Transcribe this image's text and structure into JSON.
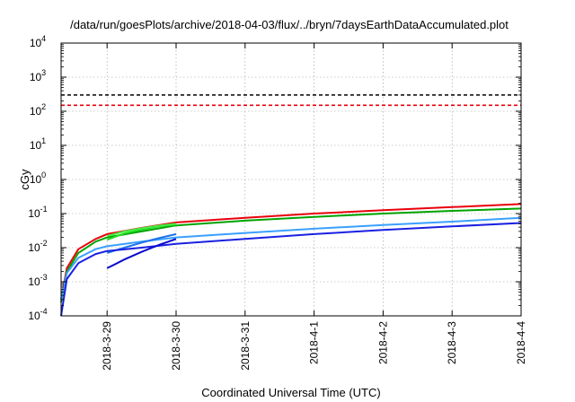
{
  "chart_data": {
    "type": "line",
    "title": "/data/run/goesPlots/archive/2018-04-03/flux/../bryn/7daysEarthDataAccumulated.plot",
    "xlabel": "Coordinated Universal Time (UTC)",
    "ylabel": "cGy",
    "y_scale": "log",
    "ylim": [
      0.0001,
      10000
    ],
    "y_ticks": [
      {
        "value": 0.0001,
        "base": "10",
        "exp": "-4"
      },
      {
        "value": 0.001,
        "base": "10",
        "exp": "-3"
      },
      {
        "value": 0.01,
        "base": "10",
        "exp": "-2"
      },
      {
        "value": 0.1,
        "base": "10",
        "exp": "-1"
      },
      {
        "value": 1,
        "base": "10",
        "exp": "0"
      },
      {
        "value": 10,
        "base": "10",
        "exp": "1"
      },
      {
        "value": 100,
        "base": "10",
        "exp": "2"
      },
      {
        "value": 1000,
        "base": "10",
        "exp": "3"
      },
      {
        "value": 10000,
        "base": "10",
        "exp": "4"
      }
    ],
    "xlim": [
      "2018-03-28 08:00",
      "2018-04-04 00:00"
    ],
    "x_ticks": [
      "2018-3-29",
      "2018-3-30",
      "2018-3-31",
      "2018-4-1",
      "2018-4-2",
      "2018-4-3",
      "2018-4-4"
    ],
    "grid": true,
    "reference_lines": [
      {
        "y": 300,
        "color": "#000000",
        "style": "dashed"
      },
      {
        "y": 150,
        "color": "#e8000b",
        "style": "dashed"
      }
    ],
    "series": [
      {
        "color": "#e8000b",
        "points": [
          [
            "2018-03-28 08:00",
            0.0003
          ],
          [
            "2018-03-28 10:00",
            0.0025
          ],
          [
            "2018-03-28 14:00",
            0.009
          ],
          [
            "2018-03-28 20:00",
            0.018
          ],
          [
            "2018-03-29 00:00",
            0.025
          ],
          [
            "2018-03-29 12:00",
            0.038
          ],
          [
            "2018-03-30 00:00",
            0.055
          ],
          [
            "2018-03-31 00:00",
            0.075
          ],
          [
            "2018-04-01 00:00",
            0.1
          ],
          [
            "2018-04-02 00:00",
            0.125
          ],
          [
            "2018-04-03 00:00",
            0.155
          ],
          [
            "2018-04-04 00:00",
            0.19
          ]
        ]
      },
      {
        "color": "#00a300",
        "points": [
          [
            "2018-03-28 08:00",
            0.00025
          ],
          [
            "2018-03-28 10:00",
            0.002
          ],
          [
            "2018-03-28 14:00",
            0.007
          ],
          [
            "2018-03-28 20:00",
            0.015
          ],
          [
            "2018-03-29 00:00",
            0.02
          ],
          [
            "2018-03-29 12:00",
            0.03
          ],
          [
            "2018-03-30 00:00",
            0.045
          ],
          [
            "2018-03-31 00:00",
            0.062
          ],
          [
            "2018-04-01 00:00",
            0.08
          ],
          [
            "2018-04-02 00:00",
            0.1
          ],
          [
            "2018-04-03 00:00",
            0.12
          ],
          [
            "2018-04-04 00:00",
            0.14
          ]
        ]
      },
      {
        "color": "#22dd22",
        "points": [
          [
            "2018-03-29 00:00",
            0.017
          ],
          [
            "2018-03-29 06:00",
            0.026
          ],
          [
            "2018-03-29 12:00",
            0.034
          ],
          [
            "2018-03-29 18:00",
            0.042
          ],
          [
            "2018-03-30 00:00",
            0.048
          ]
        ]
      },
      {
        "color": "#44ee44",
        "points": [
          [
            "2018-03-29 00:00",
            0.022
          ],
          [
            "2018-03-29 06:00",
            0.03
          ],
          [
            "2018-03-29 12:00",
            0.037
          ],
          [
            "2018-03-29 18:00",
            0.044
          ],
          [
            "2018-03-30 00:00",
            0.05
          ]
        ]
      },
      {
        "color": "#3aa0ff",
        "points": [
          [
            "2018-03-28 08:00",
            0.0003
          ],
          [
            "2018-03-28 10:00",
            0.0018
          ],
          [
            "2018-03-28 14:00",
            0.005
          ],
          [
            "2018-03-28 20:00",
            0.009
          ],
          [
            "2018-03-29 00:00",
            0.011
          ],
          [
            "2018-03-29 12:00",
            0.015
          ],
          [
            "2018-03-30 00:00",
            0.02
          ],
          [
            "2018-03-31 00:00",
            0.027
          ],
          [
            "2018-04-01 00:00",
            0.036
          ],
          [
            "2018-04-02 00:00",
            0.046
          ],
          [
            "2018-04-03 00:00",
            0.058
          ],
          [
            "2018-04-04 00:00",
            0.075
          ]
        ]
      },
      {
        "color": "#1e73e8",
        "points": [
          [
            "2018-03-29 00:00",
            0.007
          ],
          [
            "2018-03-29 06:00",
            0.01
          ],
          [
            "2018-03-29 12:00",
            0.014
          ],
          [
            "2018-03-29 18:00",
            0.019
          ],
          [
            "2018-03-30 00:00",
            0.025
          ]
        ]
      },
      {
        "color": "#1a20e0",
        "points": [
          [
            "2018-03-28 08:00",
            0.0001
          ],
          [
            "2018-03-28 10:00",
            0.0012
          ],
          [
            "2018-03-28 14:00",
            0.0035
          ],
          [
            "2018-03-28 20:00",
            0.0065
          ],
          [
            "2018-03-29 00:00",
            0.008
          ],
          [
            "2018-03-29 12:00",
            0.01
          ],
          [
            "2018-03-30 00:00",
            0.013
          ],
          [
            "2018-03-31 00:00",
            0.018
          ],
          [
            "2018-04-01 00:00",
            0.025
          ],
          [
            "2018-04-02 00:00",
            0.033
          ],
          [
            "2018-04-03 00:00",
            0.042
          ],
          [
            "2018-04-04 00:00",
            0.053
          ]
        ]
      },
      {
        "color": "#0a0ad0",
        "points": [
          [
            "2018-03-29 00:00",
            0.0025
          ],
          [
            "2018-03-29 06:00",
            0.0045
          ],
          [
            "2018-03-29 12:00",
            0.0075
          ],
          [
            "2018-03-29 18:00",
            0.012
          ],
          [
            "2018-03-30 00:00",
            0.018
          ]
        ]
      }
    ]
  }
}
